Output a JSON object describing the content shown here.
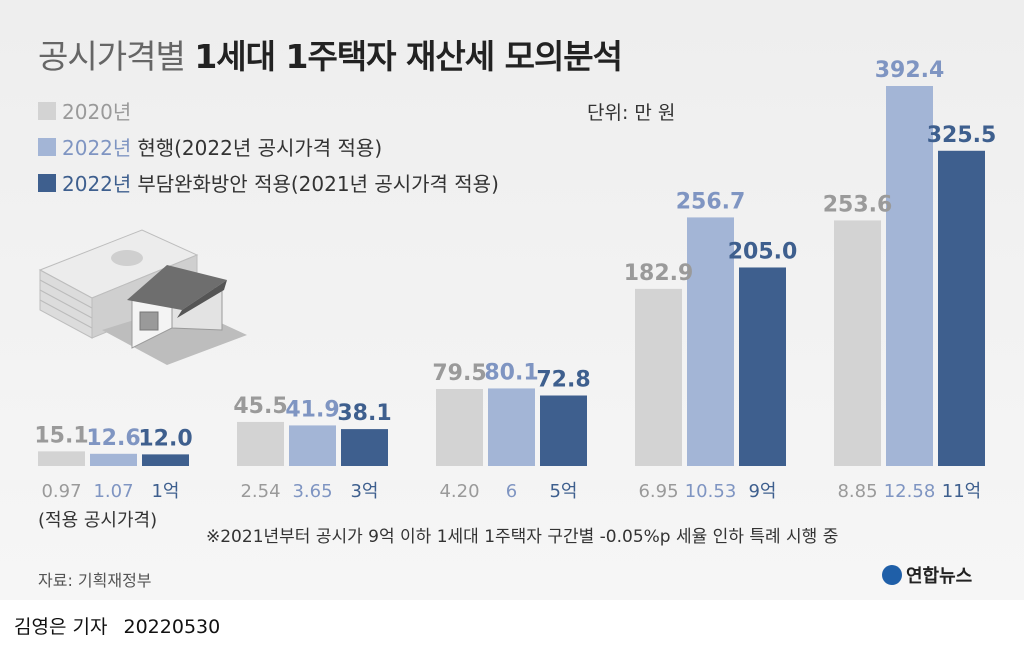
{
  "title": {
    "light": "공시가격별",
    "bold": "1세대 1주택자 재산세 모의분석"
  },
  "legend": [
    {
      "year": "2020년",
      "text": "",
      "color": "#d3d3d3",
      "text_color": "#9a9a9a"
    },
    {
      "year": "2022년",
      "text": "현행(2022년 공시가격 적용)",
      "color": "#a3b5d6",
      "text_color": "#7f95c2"
    },
    {
      "year": "2022년",
      "text": "부담완화방안 적용(2021년 공시가격 적용)",
      "color": "#3e5f8e",
      "text_color": "#3e5f8e"
    }
  ],
  "unit": "단위: 만 원",
  "chart_data": {
    "type": "bar",
    "title": "공시가격별 1세대 1주택자 재산세 모의분석",
    "unit": "단위: 만 원",
    "categories": [
      "1억",
      "3억",
      "5억",
      "9억",
      "11억"
    ],
    "series": [
      {
        "name": "2020년",
        "values": [
          15.1,
          45.5,
          79.5,
          182.9,
          253.6
        ],
        "color": "#d3d3d3",
        "label_color": "#9a9a9a"
      },
      {
        "name": "2022년 현행(2022년 공시가격 적용)",
        "values": [
          12.6,
          41.9,
          80.1,
          256.7,
          392.4
        ],
        "color": "#a3b5d6",
        "label_color": "#7f95c2"
      },
      {
        "name": "2022년 부담완화방안 적용(2021년 공시가격 적용)",
        "values": [
          12.0,
          38.1,
          72.8,
          205.0,
          325.5
        ],
        "color": "#3e5f8e",
        "label_color": "#3e5f8e"
      }
    ],
    "value_labels": [
      [
        "15.1",
        "45.5",
        "79.5",
        "182.9",
        "253.6"
      ],
      [
        "12.6",
        "41.9",
        "80.1",
        "256.7",
        "392.4"
      ],
      [
        "12.0",
        "38.1",
        "72.8",
        "205.0",
        "325.5"
      ]
    ],
    "xtick_labels": [
      [
        "0.97",
        "1.07",
        "1억"
      ],
      [
        "2.54",
        "3.65",
        "3억"
      ],
      [
        "4.20",
        "6",
        "5억"
      ],
      [
        "6.95",
        "10.53",
        "9억"
      ],
      [
        "8.85",
        "12.58",
        "11억"
      ]
    ],
    "xtick_caption": "(적용 공시가격)",
    "ylim": [
      0,
      400
    ],
    "grid": false,
    "legend_position": "top-left"
  },
  "note": "※2021년부터 공시가 9억 이하 1세대 1주택자 구간별 -0.05%p 세율 인하 특례 시행 중",
  "source": "자료: 기획재정부",
  "logo": "연합뉴스",
  "byline": {
    "author": "김영은 기자",
    "date": "20220530"
  }
}
